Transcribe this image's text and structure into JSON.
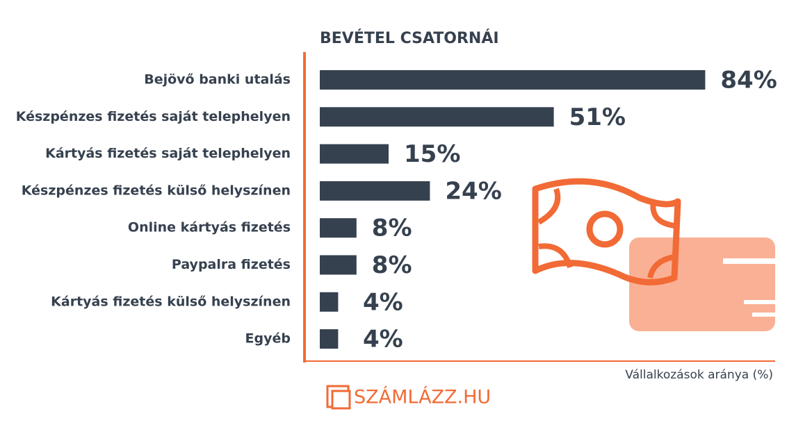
{
  "chart_data": {
    "type": "bar",
    "orientation": "horizontal",
    "title": "BEVÉTEL CSATORNÁI",
    "categories": [
      "Bejövő banki utalás",
      "Készpénzes fizetés saját telephelyen",
      "Kártyás fizetés saját telephelyen",
      "Készpénzes fizetés külső helyszínen",
      "Online kártyás fizetés",
      "Paypalra fizetés",
      "Kártyás fizetés külső helyszínen",
      "Egyéb"
    ],
    "values": [
      84,
      51,
      15,
      24,
      8,
      8,
      4,
      4
    ],
    "value_labels": [
      "84%",
      "51%",
      "15%",
      "24%",
      "8%",
      "8%",
      "4%",
      "4%"
    ],
    "color": "#36414f",
    "xlim": [
      0,
      100
    ],
    "x_label": "Vállalkozások aránya (%)",
    "axis_color": "#f26a35"
  },
  "brand": "SZÁMLÁZZ.HU"
}
